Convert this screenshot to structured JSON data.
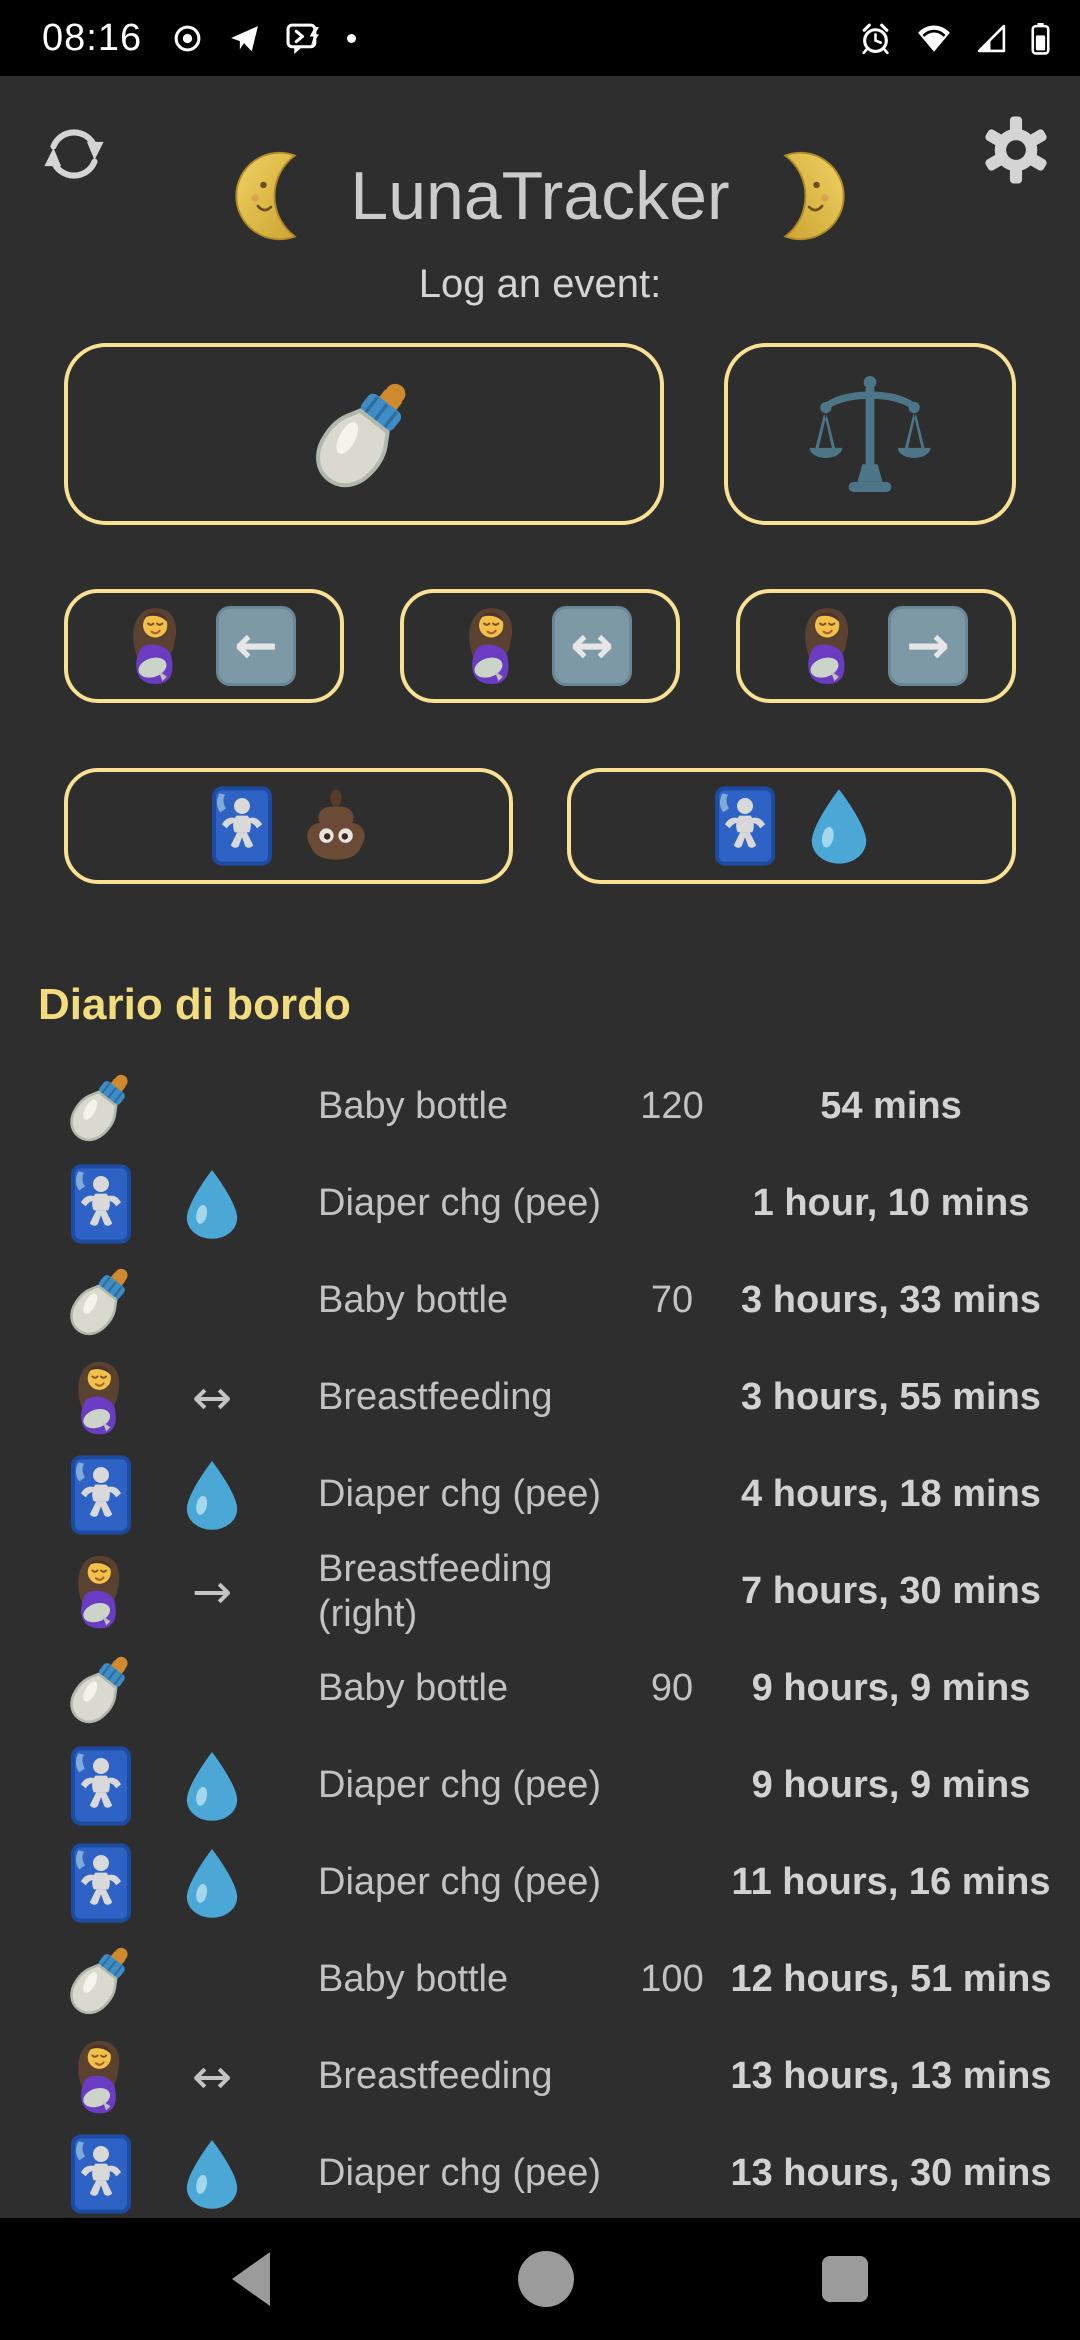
{
  "colors": {
    "background": "#2e2e2e",
    "bars": "#000000",
    "button_border_yellow": "#f8e193",
    "log_heading_gold": "#f3dc7e",
    "text_grey": "#c2c2c2",
    "elapsed_text": "#d2d2d2",
    "arrow_key_bg": "#7e99a6"
  },
  "status_bar": {
    "time": "08:16",
    "left_icons": [
      "record-circle",
      "telegram",
      "terminal-bolt",
      "notification-dot"
    ],
    "right_icons": [
      "alarm-clock",
      "wifi",
      "cell-signal",
      "battery"
    ]
  },
  "header": {
    "title": "LunaTracker",
    "subtitle": "Log an event:",
    "left_moon_icon": "first-quarter-moon-face",
    "right_moon_icon": "last-quarter-moon-face",
    "refresh_icon": "sync-arrows",
    "settings_icon": "gear"
  },
  "glyphs": {
    "arrow_left": "←",
    "arrow_both": "↔",
    "arrow_right": "→"
  },
  "event_buttons": [
    {
      "name": "bottle-feed",
      "icons": [
        "baby-bottle"
      ]
    },
    {
      "name": "weigh",
      "icons": [
        "balance-scale"
      ]
    },
    {
      "name": "breastfeed-left",
      "icons": [
        "breastfeeding",
        "arrow-left-key"
      ]
    },
    {
      "name": "breastfeed-both",
      "icons": [
        "breastfeeding",
        "arrow-both-key"
      ]
    },
    {
      "name": "breastfeed-right",
      "icons": [
        "breastfeeding",
        "arrow-right-key"
      ]
    },
    {
      "name": "diaper-poo",
      "icons": [
        "baby-sign",
        "poop"
      ]
    },
    {
      "name": "diaper-pee",
      "icons": [
        "baby-sign",
        "droplet"
      ]
    }
  ],
  "log": {
    "heading": "Diario di bordo",
    "entries": [
      {
        "icons": [
          "baby-bottle"
        ],
        "label": "Baby bottle",
        "qty": "120",
        "elapsed": "54 mins"
      },
      {
        "icons": [
          "baby-sign",
          "droplet"
        ],
        "label": "Diaper chg (pee)",
        "qty": "",
        "elapsed": "1 hour, 10 mins"
      },
      {
        "icons": [
          "baby-bottle"
        ],
        "label": "Baby bottle",
        "qty": "70",
        "elapsed": "3 hours, 33 mins"
      },
      {
        "icons": [
          "breastfeeding",
          "arrow-both"
        ],
        "label": "Breastfeeding",
        "qty": "",
        "elapsed": "3 hours, 55 mins"
      },
      {
        "icons": [
          "baby-sign",
          "droplet"
        ],
        "label": "Diaper chg (pee)",
        "qty": "",
        "elapsed": "4 hours, 18 mins"
      },
      {
        "icons": [
          "breastfeeding",
          "arrow-right"
        ],
        "label": "Breastfeeding (right)",
        "qty": "",
        "elapsed": "7 hours, 30 mins"
      },
      {
        "icons": [
          "baby-bottle"
        ],
        "label": "Baby bottle",
        "qty": "90",
        "elapsed": "9 hours, 9 mins"
      },
      {
        "icons": [
          "baby-sign",
          "droplet"
        ],
        "label": "Diaper chg (pee)",
        "qty": "",
        "elapsed": "9 hours, 9 mins"
      },
      {
        "icons": [
          "baby-sign",
          "droplet"
        ],
        "label": "Diaper chg (pee)",
        "qty": "",
        "elapsed": "11 hours, 16 mins"
      },
      {
        "icons": [
          "baby-bottle"
        ],
        "label": "Baby bottle",
        "qty": "100",
        "elapsed": "12 hours, 51 mins"
      },
      {
        "icons": [
          "breastfeeding",
          "arrow-both"
        ],
        "label": "Breastfeeding",
        "qty": "",
        "elapsed": "13 hours, 13 mins"
      },
      {
        "icons": [
          "baby-sign",
          "droplet"
        ],
        "label": "Diaper chg (pee)",
        "qty": "",
        "elapsed": "13 hours, 30 mins"
      }
    ]
  },
  "nav_bar": {
    "icons": [
      "back",
      "home",
      "recents"
    ]
  }
}
